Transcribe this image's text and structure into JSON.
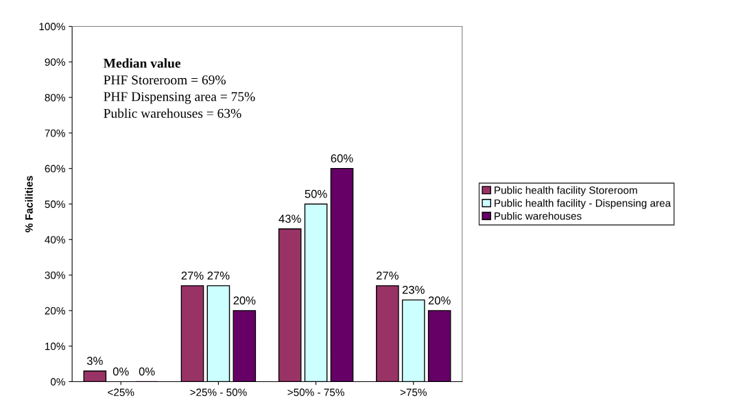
{
  "chart_data": {
    "type": "bar",
    "ylabel": "% Facilities",
    "categories": [
      "<25%",
      ">25% - 50%",
      ">50% - 75%",
      ">75%"
    ],
    "series": [
      {
        "name": "Public health facility Storeroom",
        "color": "#993366",
        "values": [
          3,
          27,
          43,
          27
        ],
        "value_labels": [
          "3%",
          "27%",
          "43%",
          "27%"
        ]
      },
      {
        "name": "Public health facility - Dispensing area",
        "color": "#ccffff",
        "values": [
          0,
          27,
          50,
          23
        ],
        "value_labels": [
          "0%",
          "27%",
          "50%",
          "23%"
        ]
      },
      {
        "name": "Public warehouses",
        "color": "#660066",
        "values": [
          0,
          20,
          60,
          20
        ],
        "value_labels": [
          "0%",
          "20%",
          "60%",
          "20%"
        ]
      }
    ],
    "ylim": [
      0,
      100
    ],
    "yticks": [
      {
        "value": 0,
        "label": "0%"
      },
      {
        "value": 10,
        "label": "10%"
      },
      {
        "value": 20,
        "label": "20%"
      },
      {
        "value": 30,
        "label": "30%"
      },
      {
        "value": 40,
        "label": "40%"
      },
      {
        "value": 50,
        "label": "50%"
      },
      {
        "value": 60,
        "label": "60%"
      },
      {
        "value": 70,
        "label": "70%"
      },
      {
        "value": 80,
        "label": "80%"
      },
      {
        "value": 90,
        "label": "90%"
      },
      {
        "value": 100,
        "label": "100%"
      }
    ],
    "annotations": [
      "Median value",
      "PHF Storeroom = 69%",
      "PHF Dispensing area = 75%",
      "Public warehouses = 63%"
    ],
    "grid": false,
    "legend": "right"
  }
}
